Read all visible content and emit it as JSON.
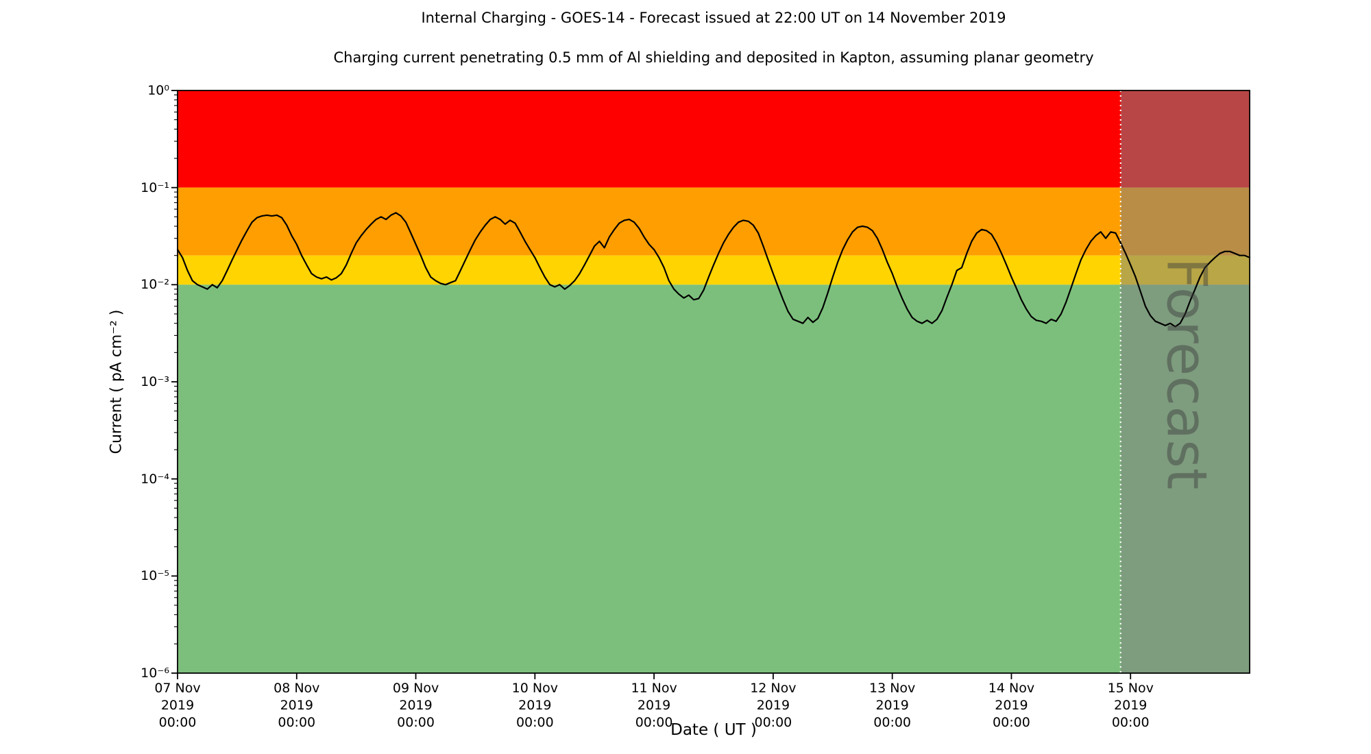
{
  "title": "Internal Charging - GOES-14 - Forecast issued at 22:00 UT on 14 November 2019",
  "subtitle": "Charging current penetrating 0.5 mm of Al shielding and deposited in Kapton, assuming planar geometry",
  "xlabel": "Date ( UT )",
  "ylabel": "Current ( pA cm⁻² )",
  "forecast_label": "Forecast",
  "colors": {
    "band_red": "#ff0000",
    "band_orange": "#ff9e00",
    "band_yellow": "#ffd400",
    "band_green": "#7cbf7c",
    "forecast_overlay": "rgba(128,128,128,0.55)",
    "forecast_boundary": "#ffffff",
    "series_line": "#000000",
    "axis": "#000000"
  },
  "chart_data": {
    "type": "line",
    "title": "Internal Charging - GOES-14 - Forecast issued at 22:00 UT on 14 November 2019",
    "x_unit": "hours since 07 Nov 2019 00:00 UT",
    "x_range": [
      0,
      216
    ],
    "y_scale": "log",
    "ylim": [
      1e-06,
      1
    ],
    "grid": false,
    "legend": "none",
    "bands": [
      {
        "name": "red-alert",
        "from": 0.1,
        "to": 1.0,
        "color": "#ff0000"
      },
      {
        "name": "orange-alert",
        "from": 0.02,
        "to": 0.1,
        "color": "#ff9e00"
      },
      {
        "name": "yellow-alert",
        "from": 0.01,
        "to": 0.02,
        "color": "#ffd400"
      },
      {
        "name": "green-safe",
        "from": 1e-06,
        "to": 0.01,
        "color": "#7cbf7c"
      }
    ],
    "forecast_start_hour": 190,
    "y_ticks": [
      {
        "value": 1,
        "label": "10⁰"
      },
      {
        "value": 0.1,
        "label": "10⁻¹"
      },
      {
        "value": 0.01,
        "label": "10⁻²"
      },
      {
        "value": 0.001,
        "label": "10⁻³"
      },
      {
        "value": 0.0001,
        "label": "10⁻⁴"
      },
      {
        "value": 1e-05,
        "label": "10⁻⁵"
      },
      {
        "value": 1e-06,
        "label": "10⁻⁶"
      }
    ],
    "x_ticks": [
      {
        "hour": 0,
        "label_lines": [
          "07 Nov",
          "2019",
          "00:00"
        ]
      },
      {
        "hour": 24,
        "label_lines": [
          "08 Nov",
          "2019",
          "00:00"
        ]
      },
      {
        "hour": 48,
        "label_lines": [
          "09 Nov",
          "2019",
          "00:00"
        ]
      },
      {
        "hour": 72,
        "label_lines": [
          "10 Nov",
          "2019",
          "00:00"
        ]
      },
      {
        "hour": 96,
        "label_lines": [
          "11 Nov",
          "2019",
          "00:00"
        ]
      },
      {
        "hour": 120,
        "label_lines": [
          "12 Nov",
          "2019",
          "00:00"
        ]
      },
      {
        "hour": 144,
        "label_lines": [
          "13 Nov",
          "2019",
          "00:00"
        ]
      },
      {
        "hour": 168,
        "label_lines": [
          "14 Nov",
          "2019",
          "00:00"
        ]
      },
      {
        "hour": 192,
        "label_lines": [
          "15 Nov",
          "2019",
          "00:00"
        ]
      }
    ],
    "series": [
      {
        "name": "charging-current-pA-cm-2",
        "start_hour": 0,
        "step_hours": 1,
        "values": [
          0.023,
          0.019,
          0.014,
          0.011,
          0.01,
          0.0095,
          0.009,
          0.01,
          0.0093,
          0.011,
          0.014,
          0.018,
          0.023,
          0.029,
          0.036,
          0.044,
          0.049,
          0.051,
          0.052,
          0.051,
          0.052,
          0.049,
          0.041,
          0.032,
          0.026,
          0.02,
          0.016,
          0.013,
          0.012,
          0.0115,
          0.012,
          0.0112,
          0.0118,
          0.013,
          0.016,
          0.021,
          0.027,
          0.032,
          0.037,
          0.042,
          0.047,
          0.05,
          0.047,
          0.052,
          0.055,
          0.051,
          0.044,
          0.034,
          0.026,
          0.02,
          0.015,
          0.012,
          0.011,
          0.0103,
          0.01,
          0.0105,
          0.011,
          0.014,
          0.018,
          0.023,
          0.029,
          0.035,
          0.041,
          0.047,
          0.05,
          0.047,
          0.042,
          0.046,
          0.043,
          0.035,
          0.028,
          0.023,
          0.019,
          0.015,
          0.012,
          0.01,
          0.0095,
          0.01,
          0.009,
          0.0098,
          0.011,
          0.013,
          0.016,
          0.02,
          0.025,
          0.028,
          0.024,
          0.031,
          0.037,
          0.043,
          0.046,
          0.047,
          0.044,
          0.038,
          0.031,
          0.026,
          0.023,
          0.019,
          0.015,
          0.011,
          0.009,
          0.008,
          0.0073,
          0.0078,
          0.007,
          0.0072,
          0.0088,
          0.012,
          0.016,
          0.021,
          0.027,
          0.033,
          0.039,
          0.044,
          0.046,
          0.045,
          0.041,
          0.034,
          0.025,
          0.018,
          0.013,
          0.0095,
          0.007,
          0.0053,
          0.0044,
          0.0042,
          0.004,
          0.0046,
          0.0041,
          0.0045,
          0.0058,
          0.0082,
          0.012,
          0.017,
          0.023,
          0.029,
          0.035,
          0.039,
          0.04,
          0.039,
          0.036,
          0.03,
          0.023,
          0.017,
          0.013,
          0.0095,
          0.0072,
          0.0056,
          0.0046,
          0.0042,
          0.004,
          0.0043,
          0.004,
          0.0044,
          0.0054,
          0.0074,
          0.01,
          0.014,
          0.015,
          0.021,
          0.028,
          0.034,
          0.037,
          0.036,
          0.033,
          0.027,
          0.021,
          0.016,
          0.012,
          0.0092,
          0.007,
          0.0056,
          0.0047,
          0.0043,
          0.0042,
          0.004,
          0.0044,
          0.0042,
          0.005,
          0.0066,
          0.0092,
          0.013,
          0.018,
          0.023,
          0.028,
          0.032,
          0.035,
          0.03,
          0.035,
          0.034,
          0.027,
          0.021,
          0.016,
          0.012,
          0.0085,
          0.006,
          0.0048,
          0.0042,
          0.004,
          0.0038,
          0.004,
          0.0037,
          0.004,
          0.005,
          0.0068,
          0.009,
          0.012,
          0.015,
          0.017,
          0.019,
          0.021,
          0.022,
          0.022,
          0.021,
          0.02,
          0.02,
          0.019
        ]
      }
    ]
  }
}
